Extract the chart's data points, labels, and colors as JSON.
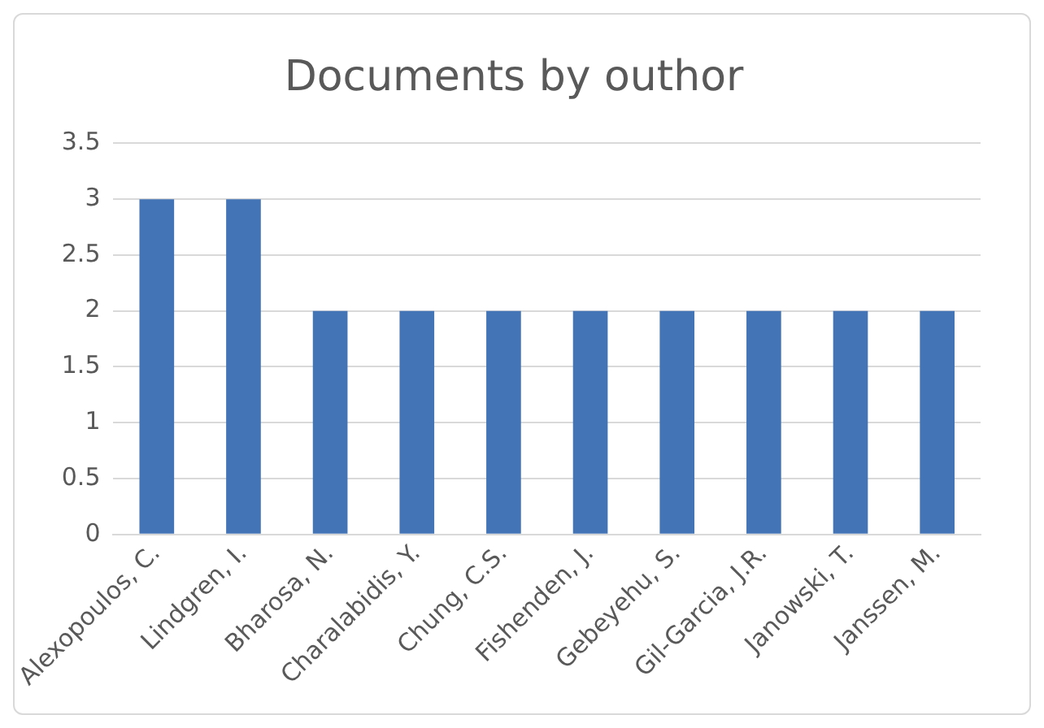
{
  "chart_data": {
    "type": "bar",
    "title": "Documents by outhor",
    "categories": [
      "Alexopoulos, C.",
      "Lindgren, I.",
      "Bharosa, N.",
      "Charalabidis, Y.",
      "Chung, C.S.",
      "Fishenden, J.",
      "Gebeyehu, S.",
      "Gil-Garcia, J.R.",
      "Janowski, T.",
      "Janssen, M."
    ],
    "values": [
      3,
      3,
      2,
      2,
      2,
      2,
      2,
      2,
      2,
      2
    ],
    "color": "#4375b6",
    "ylim": [
      0,
      3.5
    ],
    "yticks": [
      0,
      0.5,
      1,
      1.5,
      2,
      2.5,
      3,
      3.5
    ],
    "grid": "y"
  }
}
